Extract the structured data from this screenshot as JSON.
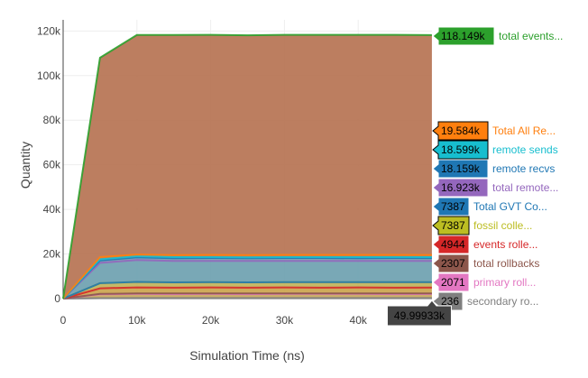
{
  "chart_data": {
    "type": "area",
    "xlabel": "Simulation Time (ns)",
    "ylabel": "Quantity",
    "xlim": [
      0,
      50000
    ],
    "ylim": [
      0,
      125000
    ],
    "x_ticks": [
      {
        "v": 0,
        "label": "0"
      },
      {
        "v": 10000,
        "label": "10k"
      },
      {
        "v": 20000,
        "label": "20k"
      },
      {
        "v": 30000,
        "label": "30k"
      },
      {
        "v": 40000,
        "label": "40k"
      }
    ],
    "y_ticks": [
      {
        "v": 0,
        "label": "0"
      },
      {
        "v": 20000,
        "label": "20k"
      },
      {
        "v": 40000,
        "label": "40k"
      },
      {
        "v": 60000,
        "label": "60k"
      },
      {
        "v": 80000,
        "label": "80k"
      },
      {
        "v": 100000,
        "label": "100k"
      },
      {
        "v": 120000,
        "label": "120k"
      }
    ],
    "grid": true,
    "x": [
      0,
      5000,
      10000,
      15000,
      20000,
      25000,
      30000,
      35000,
      40000,
      45000,
      49993.3
    ],
    "hover_x_label": "49.99933k",
    "series": [
      {
        "name": "total events...",
        "color": "#2ca02c",
        "fill": "#b5704f",
        "hover_value": "118.149k",
        "values": [
          0,
          108000,
          118200,
          118200,
          118300,
          118100,
          118300,
          118300,
          118300,
          118300,
          118149
        ]
      },
      {
        "name": "Total All Re...",
        "color": "#ff7f0e",
        "fill": null,
        "hover_value": "19.584k",
        "values": [
          0,
          18600,
          19800,
          19500,
          19600,
          19500,
          19600,
          19600,
          19600,
          19600,
          19584
        ]
      },
      {
        "name": "remote sends",
        "color": "#17becf",
        "fill": "#6a9fae",
        "hover_value": "18.599k",
        "values": [
          0,
          17600,
          19000,
          18600,
          18600,
          18500,
          18600,
          18600,
          18600,
          18600,
          18599
        ]
      },
      {
        "name": "remote recvs",
        "color": "#1f77b4",
        "fill": null,
        "hover_value": "18.159k",
        "values": [
          0,
          17100,
          18500,
          18100,
          18200,
          18100,
          18200,
          18200,
          18100,
          18200,
          18159
        ]
      },
      {
        "name": "total remote...",
        "color": "#9467bd",
        "fill": null,
        "hover_value": "16.923k",
        "values": [
          0,
          16000,
          17300,
          16900,
          16900,
          16900,
          16900,
          16900,
          16900,
          16900,
          16923
        ]
      },
      {
        "name": "Total GVT Co...",
        "color": "#1f77b4",
        "fill": "#bfb157",
        "hover_value": "7387",
        "values": [
          0,
          6900,
          7500,
          7300,
          7400,
          7300,
          7400,
          7400,
          7400,
          7400,
          7387
        ]
      },
      {
        "name": "fossil colle...",
        "color": "#bcbd22",
        "fill": null,
        "hover_value": "7387",
        "values": [
          0,
          6900,
          7500,
          7300,
          7400,
          7300,
          7400,
          7400,
          7400,
          7400,
          7387
        ]
      },
      {
        "name": "events rolle...",
        "color": "#d62728",
        "fill": "#caa24a",
        "hover_value": "4944",
        "values": [
          0,
          4600,
          5000,
          4900,
          5000,
          4900,
          5000,
          4900,
          5000,
          4900,
          4944
        ]
      },
      {
        "name": "total rollbacks",
        "color": "#8c564b",
        "fill": "#c39a51",
        "hover_value": "2307",
        "values": [
          0,
          2100,
          2300,
          2300,
          2300,
          2300,
          2300,
          2300,
          2300,
          2300,
          2307
        ]
      },
      {
        "name": "primary roll...",
        "color": "#e377c2",
        "fill": "#c7a65a",
        "hover_value": "2071",
        "values": [
          0,
          1900,
          2100,
          2000,
          2100,
          2000,
          2100,
          2100,
          2100,
          2000,
          2071
        ]
      },
      {
        "name": "secondary ro...",
        "color": "#7f7f7f",
        "fill": "#b5ae8c",
        "hover_value": "236",
        "values": [
          0,
          200,
          250,
          230,
          240,
          230,
          240,
          240,
          230,
          240,
          236
        ]
      }
    ]
  }
}
